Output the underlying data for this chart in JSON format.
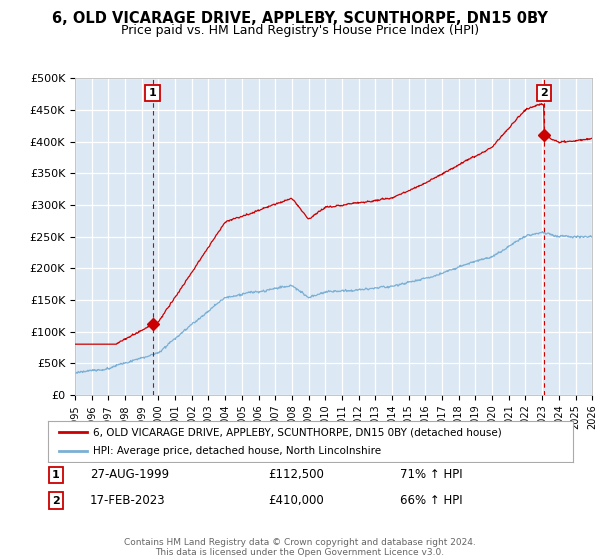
{
  "title": "6, OLD VICARAGE DRIVE, APPLEBY, SCUNTHORPE, DN15 0BY",
  "subtitle": "Price paid vs. HM Land Registry's House Price Index (HPI)",
  "title_fontsize": 10.5,
  "subtitle_fontsize": 9,
  "ylim": [
    0,
    500000
  ],
  "yticks": [
    0,
    50000,
    100000,
    150000,
    200000,
    250000,
    300000,
    350000,
    400000,
    450000,
    500000
  ],
  "ytick_labels": [
    "£0",
    "£50K",
    "£100K",
    "£150K",
    "£200K",
    "£250K",
    "£300K",
    "£350K",
    "£400K",
    "£450K",
    "£500K"
  ],
  "background_color": "#ffffff",
  "plot_background": "#dce9f5",
  "grid_color": "#ffffff",
  "sale1_x": 1999.65,
  "sale1_y": 112500,
  "sale2_x": 2023.12,
  "sale2_y": 410000,
  "sale1_label": "1",
  "sale2_label": "2",
  "property_color": "#cc0000",
  "hpi_color": "#7bafd4",
  "legend_property": "6, OLD VICARAGE DRIVE, APPLEBY, SCUNTHORPE, DN15 0BY (detached house)",
  "legend_hpi": "HPI: Average price, detached house, North Lincolnshire",
  "annotation1_date": "27-AUG-1999",
  "annotation1_price": "£112,500",
  "annotation1_hpi": "71% ↑ HPI",
  "annotation2_date": "17-FEB-2023",
  "annotation2_price": "£410,000",
  "annotation2_hpi": "66% ↑ HPI",
  "footer": "Contains HM Land Registry data © Crown copyright and database right 2024.\nThis data is licensed under the Open Government Licence v3.0.",
  "xmin": 1995,
  "xmax": 2026
}
